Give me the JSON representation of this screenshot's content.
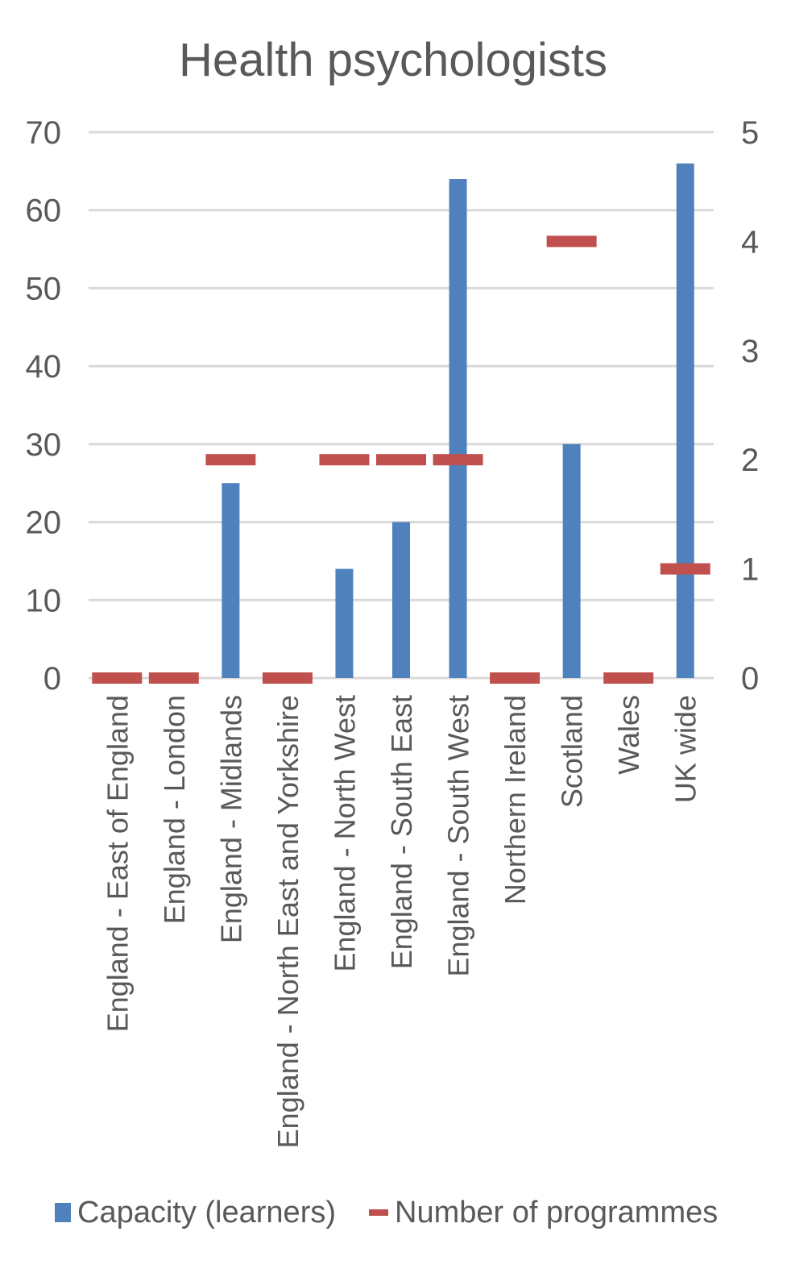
{
  "chart_data": {
    "type": "bar",
    "title": "Health psychologists",
    "categories": [
      "England - East of England",
      "England - London",
      "England - Midlands",
      "England - North East and Yorkshire",
      "England - North West",
      "England - South East",
      "England - South West",
      "Northern Ireland",
      "Scotland",
      "Wales",
      "UK wide"
    ],
    "series": [
      {
        "name": "Capacity (learners)",
        "axis": "left",
        "mark": "bar",
        "color": "#4f81bd",
        "values": [
          0,
          0,
          25,
          0,
          14,
          20,
          64,
          0,
          30,
          0,
          66
        ]
      },
      {
        "name": "Number of programmes",
        "axis": "right",
        "mark": "dash",
        "color": "#c0504d",
        "values": [
          0,
          0,
          2,
          0,
          2,
          2,
          2,
          0,
          4,
          0,
          1
        ]
      }
    ],
    "y_left": {
      "min": 0,
      "max": 70,
      "ticks": [
        0,
        10,
        20,
        30,
        40,
        50,
        60,
        70
      ]
    },
    "y_right": {
      "min": 0,
      "max": 5,
      "ticks": [
        0,
        1,
        2,
        3,
        4,
        5
      ]
    },
    "grid": true,
    "legend_position": "bottom"
  }
}
